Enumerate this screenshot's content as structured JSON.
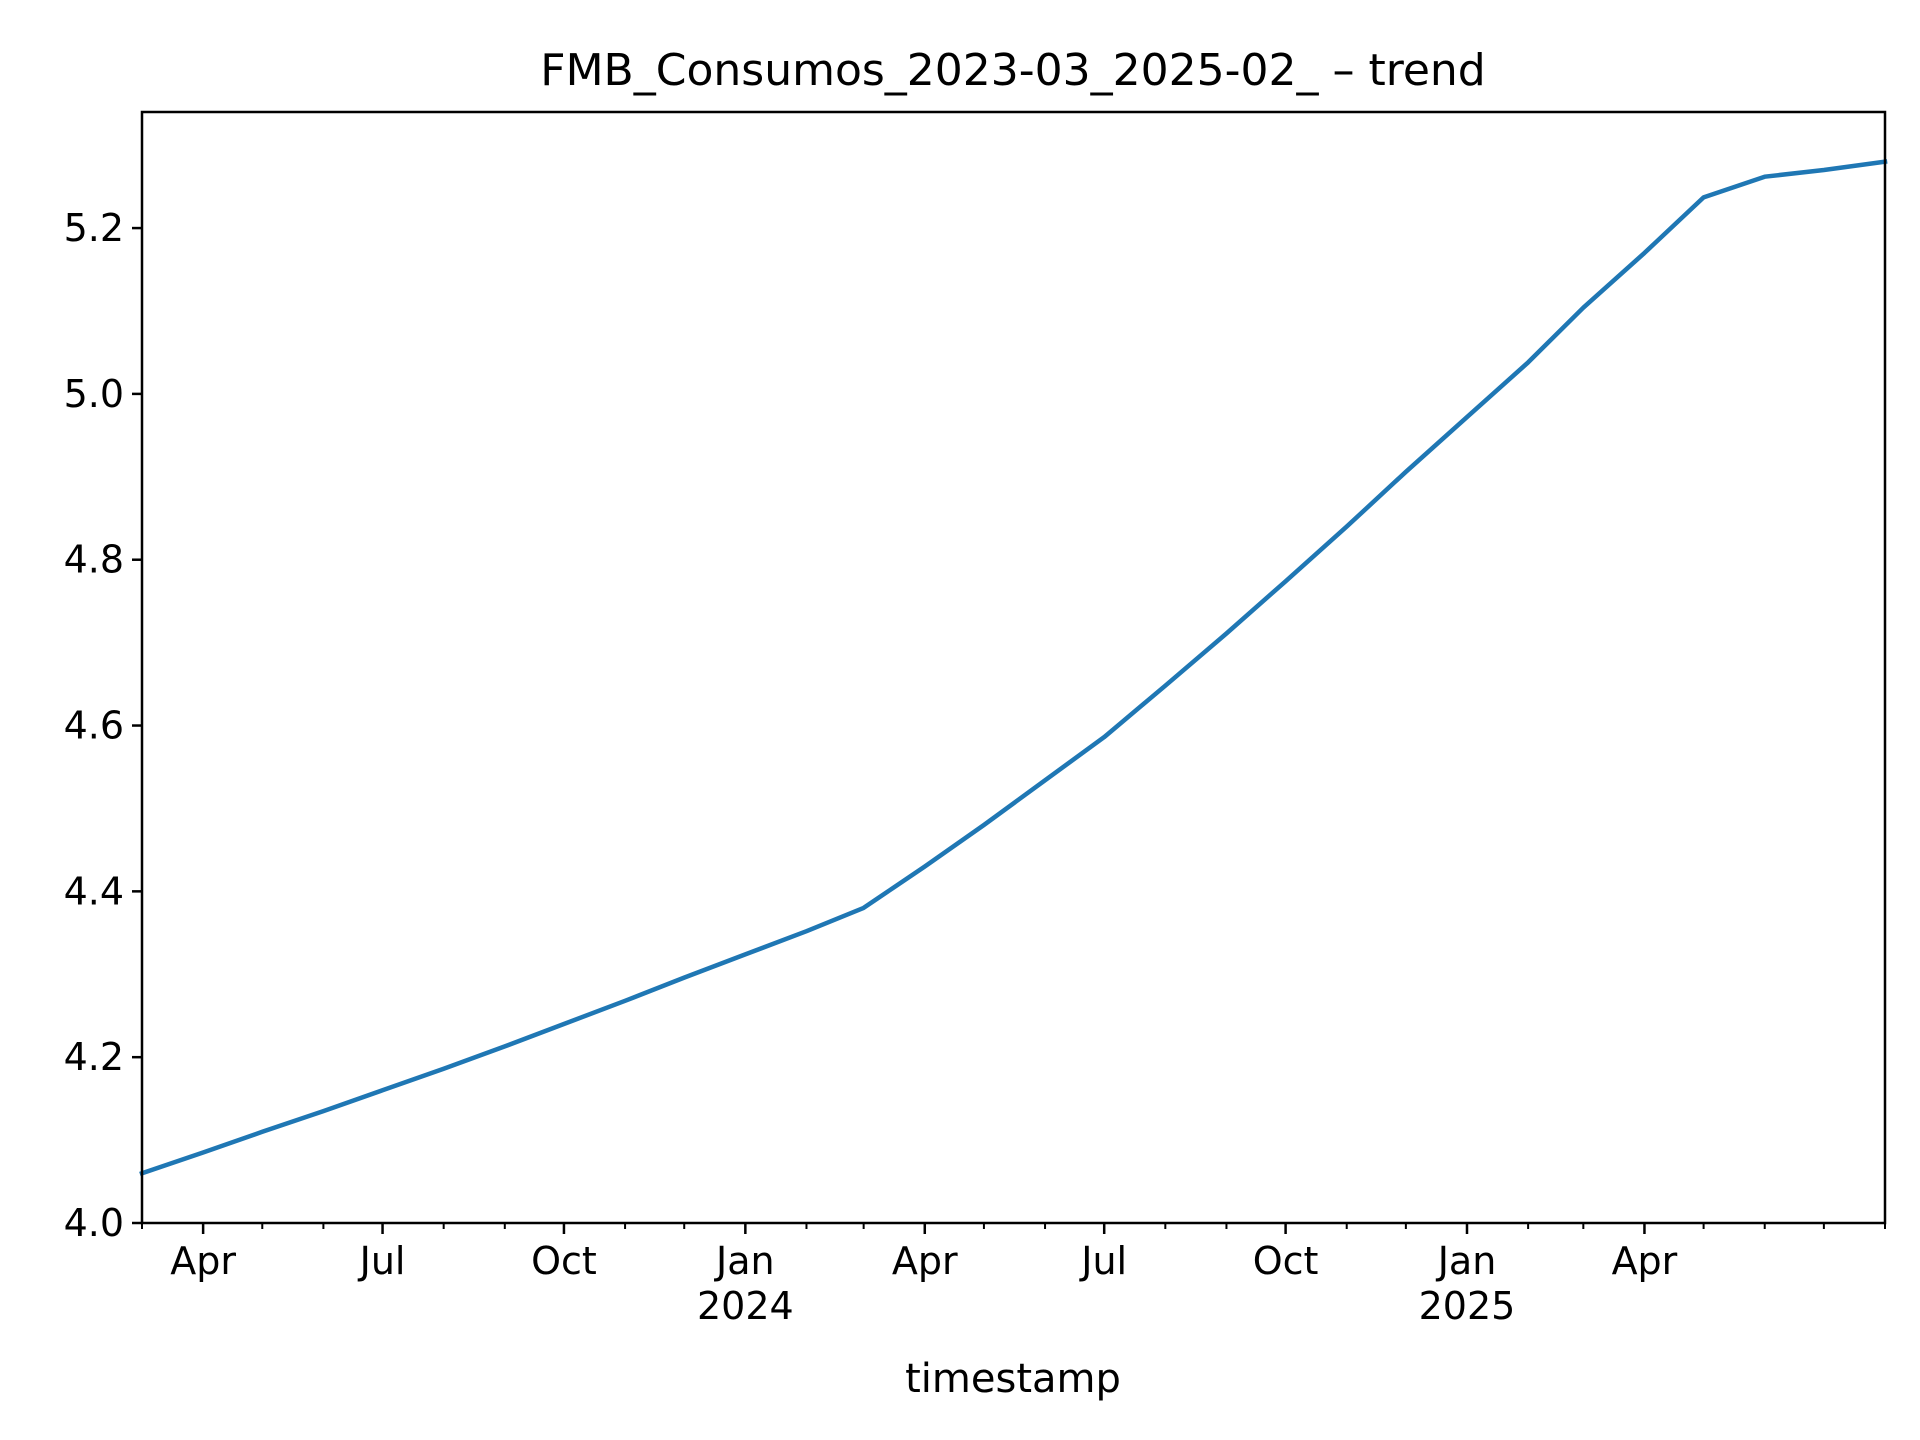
{
  "chart_data": {
    "type": "line",
    "title": "FMB_Consumos_2023-03_2025-02_ – trend",
    "xlabel": "timestamp",
    "ylabel": "",
    "x_type": "date",
    "xlim": [
      "2023-03-01",
      "2025-08-01"
    ],
    "ylim": [
      4.0,
      5.34
    ],
    "grid": false,
    "series": [
      {
        "color": "#1f77b4",
        "x": [
          "2023-03-01",
          "2023-04-01",
          "2023-05-01",
          "2023-06-01",
          "2023-07-01",
          "2023-08-01",
          "2023-09-01",
          "2023-10-01",
          "2023-11-01",
          "2023-12-01",
          "2024-01-01",
          "2024-02-01",
          "2024-03-01",
          "2024-04-01",
          "2024-05-01",
          "2024-06-01",
          "2024-07-01",
          "2024-08-01",
          "2024-09-01",
          "2024-10-01",
          "2024-11-01",
          "2024-12-01",
          "2025-01-01",
          "2025-02-01",
          "2025-03-01",
          "2025-04-01",
          "2025-05-01",
          "2025-06-01",
          "2025-07-01",
          "2025-08-01"
        ],
        "y": [
          4.06,
          4.085,
          4.11,
          4.135,
          4.16,
          4.186,
          4.213,
          4.24,
          4.268,
          4.296,
          4.324,
          4.352,
          4.38,
          4.43,
          4.48,
          4.534,
          4.586,
          4.648,
          4.711,
          4.774,
          4.84,
          4.906,
          4.972,
          5.038,
          5.104,
          5.17,
          5.237,
          5.262,
          5.27,
          5.28
        ]
      }
    ],
    "x_ticks": [
      {
        "date": "2023-04-01",
        "label": "Apr",
        "sublabel": ""
      },
      {
        "date": "2023-07-01",
        "label": "Jul",
        "sublabel": ""
      },
      {
        "date": "2023-10-01",
        "label": "Oct",
        "sublabel": ""
      },
      {
        "date": "2024-01-01",
        "label": "Jan",
        "sublabel": "2024"
      },
      {
        "date": "2024-04-01",
        "label": "Apr",
        "sublabel": ""
      },
      {
        "date": "2024-07-01",
        "label": "Jul",
        "sublabel": ""
      },
      {
        "date": "2024-10-01",
        "label": "Oct",
        "sublabel": ""
      },
      {
        "date": "2025-01-01",
        "label": "Jan",
        "sublabel": "2025"
      },
      {
        "date": "2025-04-01",
        "label": "Apr",
        "sublabel": ""
      }
    ],
    "x_minor_ticks": [
      "2023-03-01",
      "2023-05-01",
      "2023-06-01",
      "2023-08-01",
      "2023-09-01",
      "2023-11-01",
      "2023-12-01",
      "2024-02-01",
      "2024-03-01",
      "2024-05-01",
      "2024-06-01",
      "2024-08-01",
      "2024-09-01",
      "2024-11-01",
      "2024-12-01",
      "2025-02-01",
      "2025-03-01",
      "2025-05-01",
      "2025-06-01",
      "2025-07-01",
      "2025-08-01"
    ],
    "y_ticks": [
      {
        "value": 4.0,
        "label": "4.0"
      },
      {
        "value": 4.2,
        "label": "4.2"
      },
      {
        "value": 4.4,
        "label": "4.4"
      },
      {
        "value": 4.6,
        "label": "4.6"
      },
      {
        "value": 4.8,
        "label": "4.8"
      },
      {
        "value": 5.0,
        "label": "5.0"
      },
      {
        "value": 5.2,
        "label": "5.2"
      }
    ]
  }
}
